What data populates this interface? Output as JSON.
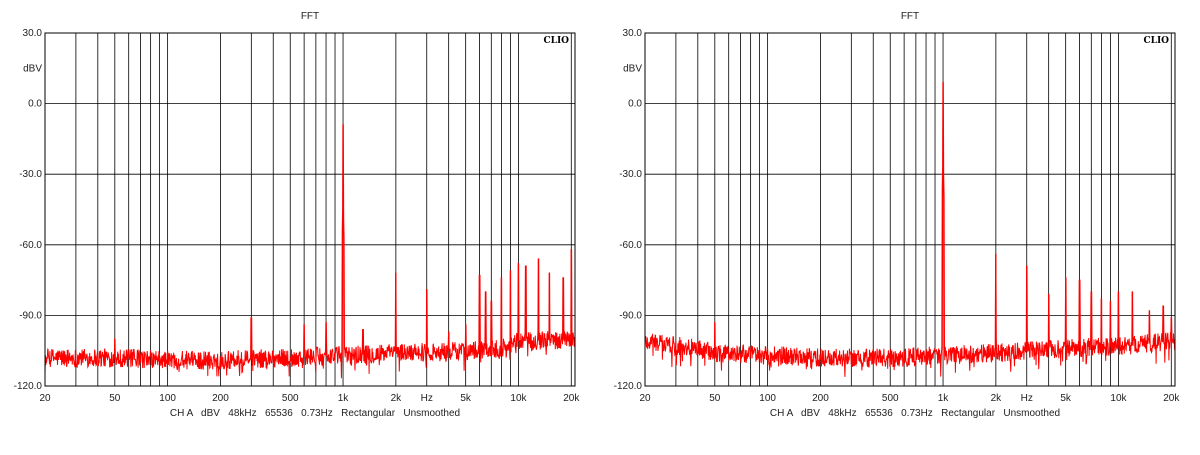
{
  "chart_data": [
    {
      "type": "line",
      "title": "FFT",
      "brand": "CLIO",
      "ylabel": "dBV",
      "xlabel": "Hz",
      "footer": "CH A   dBV   48kHz   65536   0.73Hz   Rectangular   Unsmoothed",
      "x_scale": "log",
      "xlim": [
        20,
        21000
      ],
      "ylim": [
        -120,
        30
      ],
      "grid": true,
      "line_color": "#ff0000",
      "y_ticks": [
        "30.0",
        "0.0",
        "-30.0",
        "-60.0",
        "-90.0",
        "-120.0"
      ],
      "y_tick_values": [
        30,
        0,
        -30,
        -60,
        -90,
        -120
      ],
      "x_ticks": [
        "20",
        "50",
        "100",
        "200",
        "500",
        "1k",
        "2k",
        "Hz",
        "5k",
        "10k",
        "20k"
      ],
      "x_tick_values": [
        20,
        50,
        100,
        200,
        500,
        1000,
        2000,
        3000,
        5000,
        10000,
        20000
      ],
      "noise_floor": [
        [
          20,
          -108
        ],
        [
          50,
          -108
        ],
        [
          100,
          -109
        ],
        [
          200,
          -109
        ],
        [
          500,
          -108
        ],
        [
          1000,
          -107
        ],
        [
          2000,
          -106
        ],
        [
          5000,
          -105
        ],
        [
          8000,
          -104
        ],
        [
          10000,
          -101
        ],
        [
          21000,
          -100
        ]
      ],
      "peaks": [
        [
          50,
          -100
        ],
        [
          300,
          -91
        ],
        [
          600,
          -94
        ],
        [
          800,
          -93
        ],
        [
          1000,
          -9
        ],
        [
          1300,
          -96
        ],
        [
          2000,
          -72
        ],
        [
          3000,
          -79
        ],
        [
          4000,
          -97
        ],
        [
          5000,
          -94
        ],
        [
          6000,
          -73
        ],
        [
          6500,
          -80
        ],
        [
          7000,
          -84
        ],
        [
          8000,
          -74
        ],
        [
          9000,
          -71
        ],
        [
          10000,
          -68
        ],
        [
          11000,
          -69
        ],
        [
          13000,
          -66
        ],
        [
          15000,
          -72
        ],
        [
          18000,
          -74
        ],
        [
          20000,
          -62
        ]
      ]
    },
    {
      "type": "line",
      "title": "FFT",
      "brand": "CLIO",
      "ylabel": "dBV",
      "xlabel": "Hz",
      "footer": "CH A   dBV   48kHz   65536   0.73Hz   Rectangular   Unsmoothed",
      "x_scale": "log",
      "xlim": [
        20,
        21000
      ],
      "ylim": [
        -120,
        30
      ],
      "grid": true,
      "line_color": "#ff0000",
      "y_ticks": [
        "30.0",
        "0.0",
        "-30.0",
        "-60.0",
        "-90.0",
        "-120.0"
      ],
      "y_tick_values": [
        30,
        0,
        -30,
        -60,
        -90,
        -120
      ],
      "x_ticks": [
        "20",
        "50",
        "100",
        "200",
        "500",
        "1k",
        "2k",
        "Hz",
        "5k",
        "10k",
        "20k"
      ],
      "x_tick_values": [
        20,
        50,
        100,
        200,
        500,
        1000,
        2000,
        3000,
        5000,
        10000,
        20000
      ],
      "noise_floor": [
        [
          20,
          -101
        ],
        [
          40,
          -104
        ],
        [
          50,
          -106
        ],
        [
          100,
          -107
        ],
        [
          200,
          -108
        ],
        [
          500,
          -108
        ],
        [
          1000,
          -107
        ],
        [
          2000,
          -106
        ],
        [
          5000,
          -104
        ],
        [
          10000,
          -103
        ],
        [
          21000,
          -101
        ]
      ],
      "peaks": [
        [
          50,
          -93
        ],
        [
          1000,
          9
        ],
        [
          2000,
          -64
        ],
        [
          3000,
          -69
        ],
        [
          4000,
          -81
        ],
        [
          5000,
          -74
        ],
        [
          6000,
          -75
        ],
        [
          7000,
          -80
        ],
        [
          8000,
          -83
        ],
        [
          9000,
          -84
        ],
        [
          10000,
          -80
        ],
        [
          12000,
          -80
        ],
        [
          15000,
          -88
        ],
        [
          18000,
          -86
        ],
        [
          20000,
          -91
        ]
      ]
    }
  ]
}
